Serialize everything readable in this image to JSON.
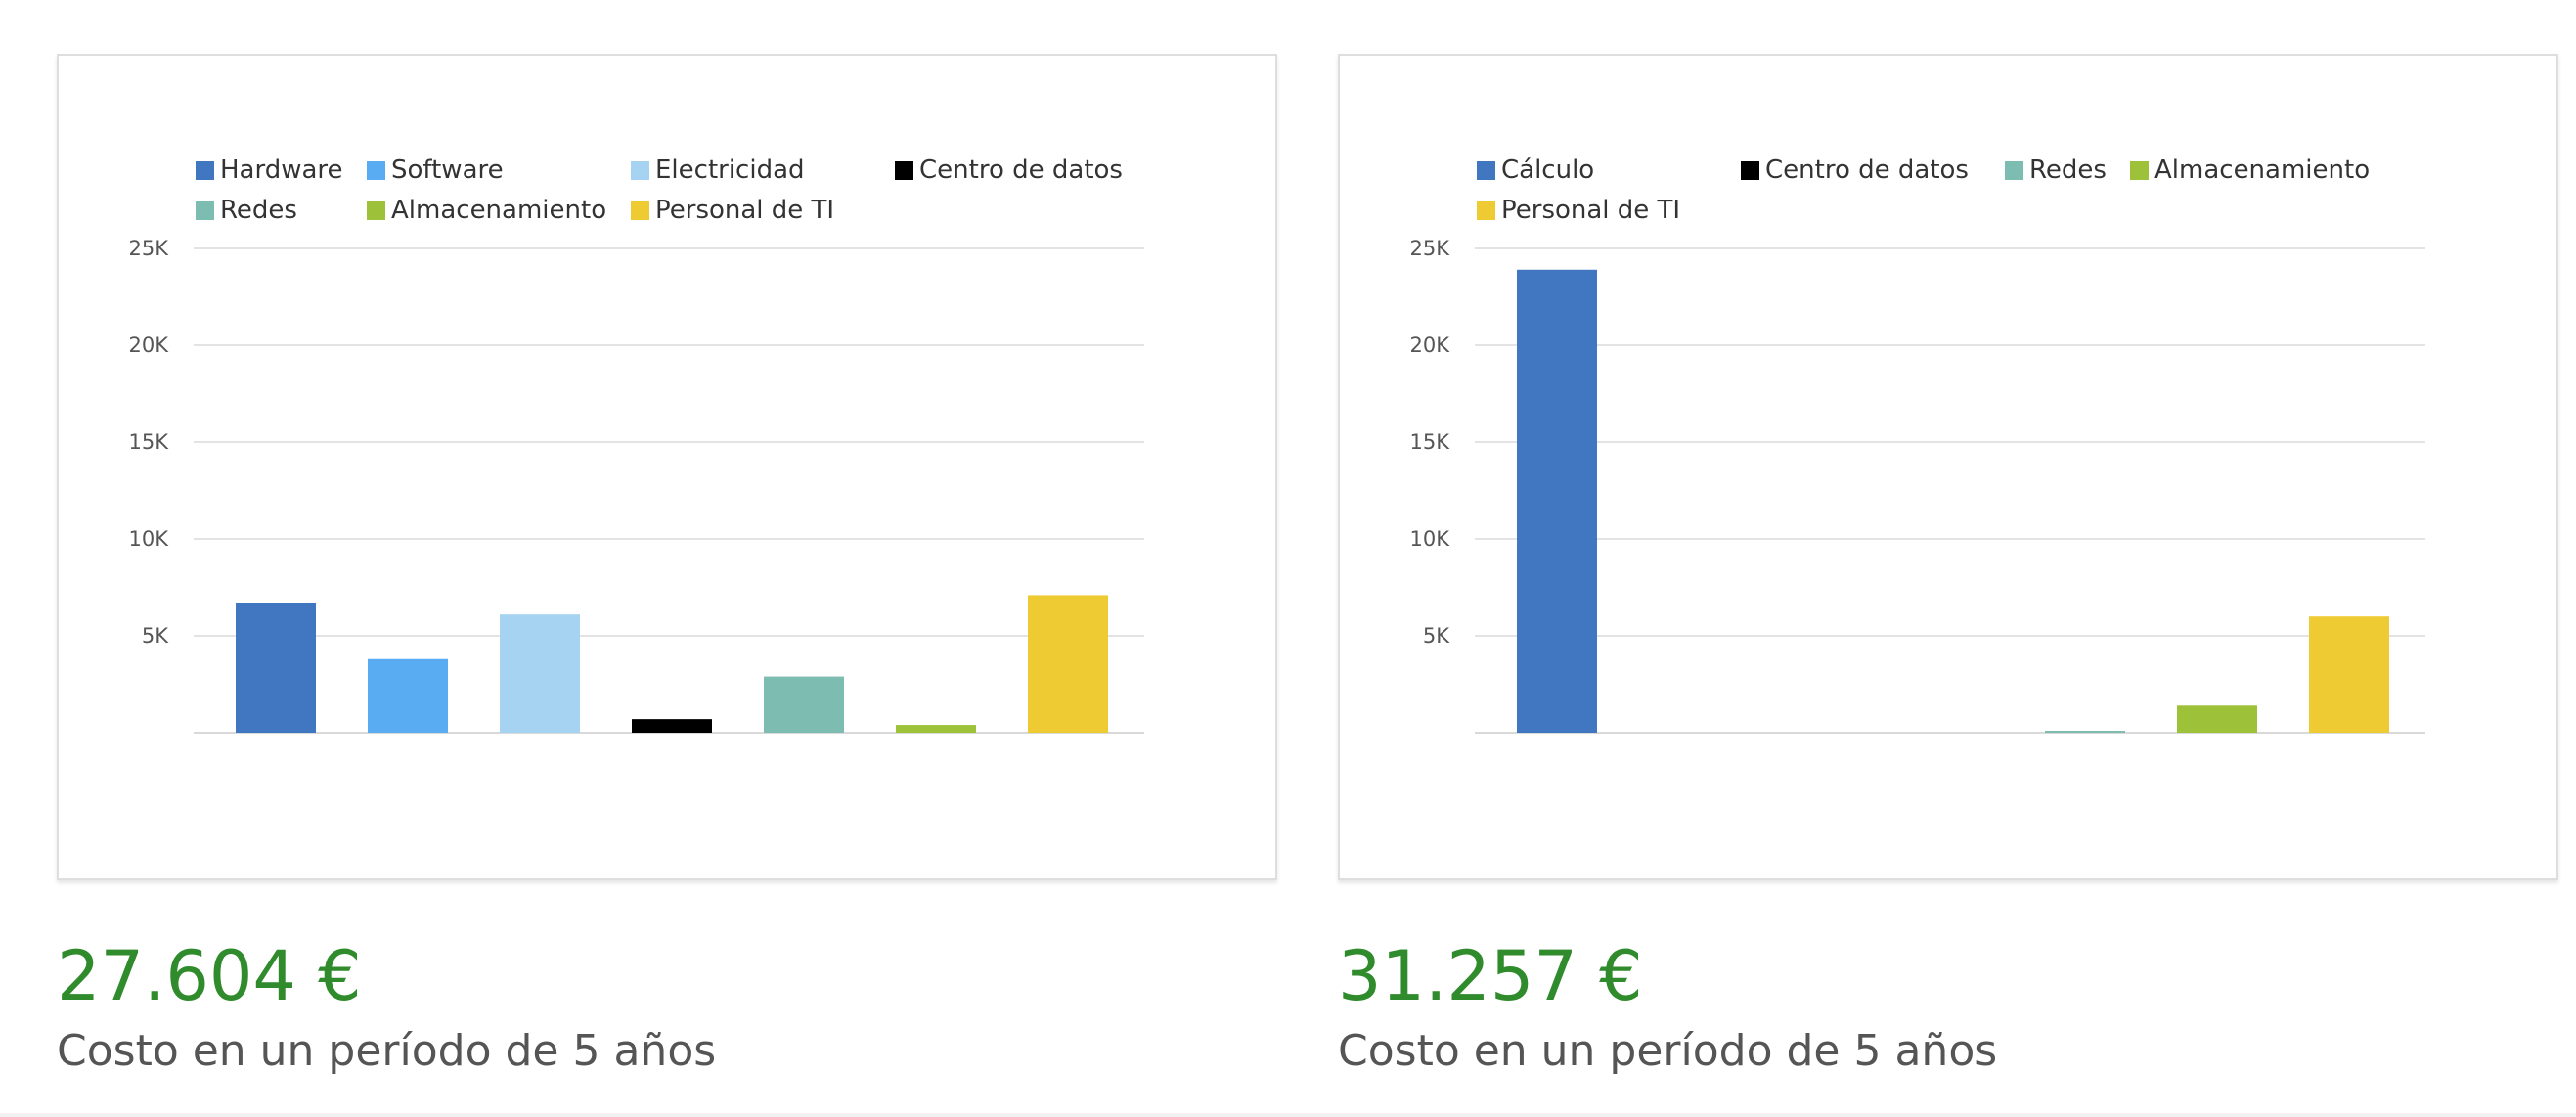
{
  "charts": [
    {
      "total": "27.604 €",
      "caption": "Costo en un período de 5 años",
      "chart_data": {
        "type": "bar",
        "title": "",
        "xlabel": "",
        "ylabel": "",
        "ylim": [
          0,
          25000
        ],
        "y_ticks": [
          "5K",
          "10K",
          "15K",
          "20K",
          "25K"
        ],
        "y_tick_values": [
          5000,
          10000,
          15000,
          20000,
          25000
        ],
        "grid": true,
        "legend_position": "top",
        "categories": [
          "Hardware",
          "Software",
          "Electricidad",
          "Centro de datos",
          "Redes",
          "Almacenamiento",
          "Personal de TI"
        ],
        "values": [
          6700,
          3800,
          6100,
          700,
          2900,
          400,
          7100
        ],
        "colors": [
          "#4177c1",
          "#5aacf2",
          "#a5d3f1",
          "#000000",
          "#7dbcb0",
          "#9dc23a",
          "#eeca33"
        ]
      }
    },
    {
      "total": "31.257 €",
      "caption": "Costo en un período de 5 años",
      "chart_data": {
        "type": "bar",
        "title": "",
        "xlabel": "",
        "ylabel": "",
        "ylim": [
          0,
          25000
        ],
        "y_ticks": [
          "5K",
          "10K",
          "15K",
          "20K",
          "25K"
        ],
        "y_tick_values": [
          5000,
          10000,
          15000,
          20000,
          25000
        ],
        "grid": true,
        "legend_position": "top",
        "categories": [
          "Cálculo",
          "Centro de datos",
          "Redes",
          "Almacenamiento",
          "Personal de TI"
        ],
        "values": [
          23900,
          0,
          100,
          1400,
          6000
        ],
        "colors": [
          "#4177c1",
          "#000000",
          "#7dbcb0",
          "#9dc23a",
          "#eeca33"
        ]
      }
    }
  ]
}
